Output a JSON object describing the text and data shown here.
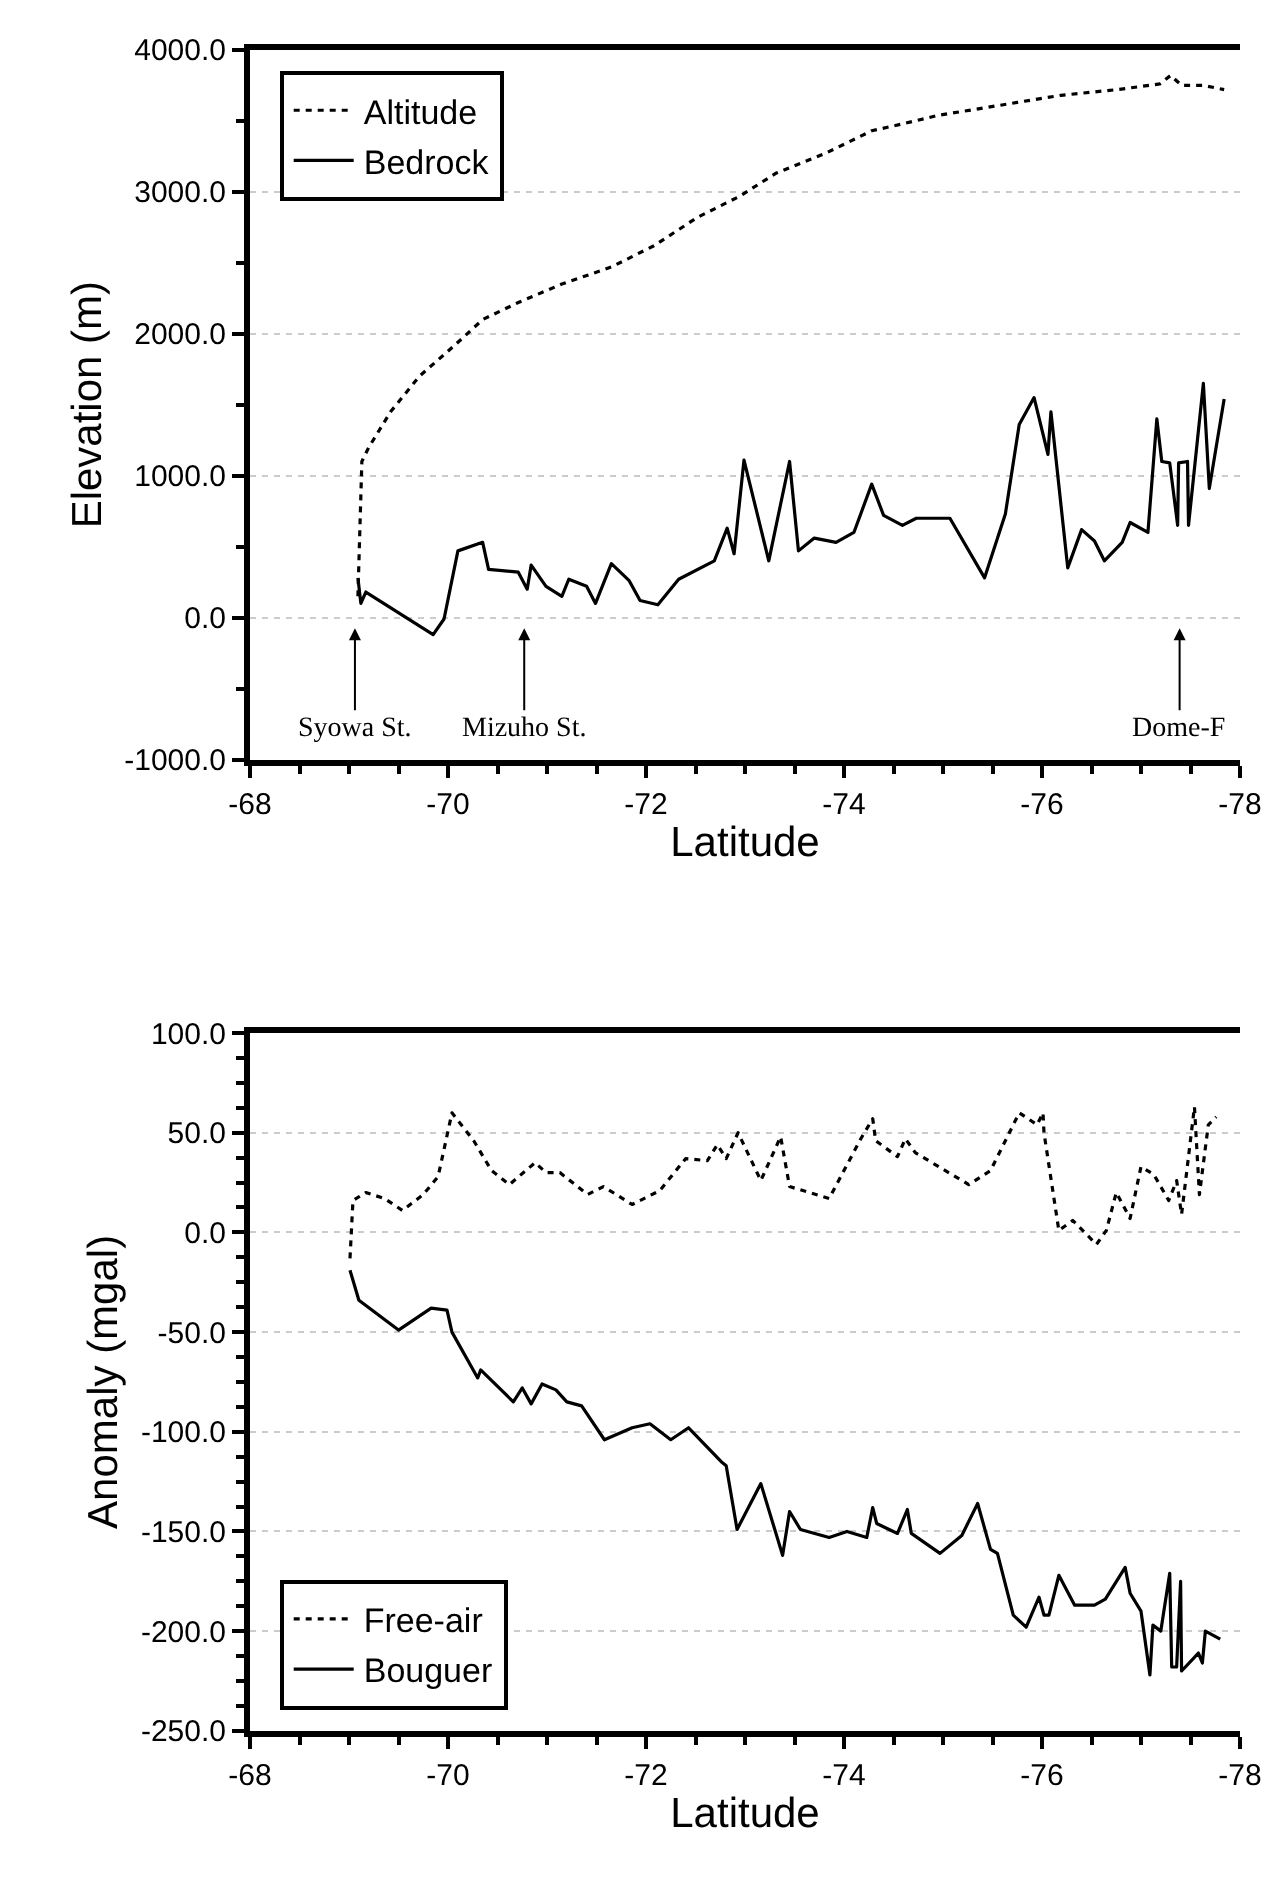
{
  "chart_data": [
    {
      "type": "line",
      "xlabel": "Latitude",
      "ylabel": "Elevation (m)",
      "xlim": [
        -68,
        -78
      ],
      "xticks": [
        -68,
        -70,
        -72,
        -74,
        -76,
        -78
      ],
      "ylim": [
        -1000,
        4000
      ],
      "yticks": [
        {
          "value": -1000,
          "label": "-1000.0"
        },
        {
          "value": 0,
          "label": "0.0"
        },
        {
          "value": 1000,
          "label": "1000.0"
        },
        {
          "value": 2000,
          "label": "2000.0"
        },
        {
          "value": 3000,
          "label": "3000.0"
        },
        {
          "value": 4000,
          "label": "4000.0"
        }
      ],
      "grid": "y",
      "legend": "top left",
      "annotations": [
        "Syowa St.",
        "Mizuho St.",
        "Dome-F"
      ],
      "series": [
        {
          "name": "Altitude",
          "color": "#000000",
          "line_style": "dotted",
          "x": [
            -69.09,
            -69.13,
            -69.2,
            -69.42,
            -69.71,
            -70.07,
            -70.35,
            -70.71,
            -71.15,
            -71.65,
            -72.08,
            -72.52,
            -72.95,
            -73.31,
            -73.81,
            -74.28,
            -74.6,
            -74.96,
            -75.32,
            -75.75,
            -76.19,
            -76.76,
            -77.19,
            -77.3,
            -77.41,
            -77.63,
            -77.84
          ],
          "values": [
            150,
            1100,
            1200,
            1450,
            1700,
            1920,
            2100,
            2220,
            2350,
            2470,
            2620,
            2820,
            2970,
            3130,
            3270,
            3430,
            3480,
            3540,
            3580,
            3630,
            3680,
            3720,
            3760,
            3820,
            3750,
            3750,
            3720
          ]
        },
        {
          "name": "Bedrock",
          "color": "#000000",
          "line_style": "solid",
          "x": [
            -69.09,
            -69.12,
            -69.17,
            -69.85,
            -69.96,
            -70.1,
            -70.35,
            -70.41,
            -70.71,
            -70.8,
            -70.84,
            -70.99,
            -71.15,
            -71.22,
            -71.4,
            -71.49,
            -71.65,
            -71.83,
            -71.94,
            -72.12,
            -72.33,
            -72.69,
            -72.82,
            -72.89,
            -72.99,
            -73.24,
            -73.45,
            -73.54,
            -73.7,
            -73.92,
            -74.1,
            -74.28,
            -74.4,
            -74.59,
            -74.73,
            -75.07,
            -75.42,
            -75.63,
            -75.77,
            -75.92,
            -76.06,
            -76.09,
            -76.26,
            -76.4,
            -76.53,
            -76.63,
            -76.81,
            -76.89,
            -77.07,
            -77.16,
            -77.21,
            -77.29,
            -77.37,
            -77.38,
            -77.47,
            -77.48,
            -77.63,
            -77.69,
            -77.84
          ],
          "values": [
            280,
            100,
            180,
            -120,
            -10,
            470,
            530,
            340,
            320,
            200,
            370,
            220,
            150,
            270,
            220,
            100,
            380,
            260,
            120,
            90,
            270,
            400,
            630,
            450,
            1110,
            400,
            1100,
            470,
            560,
            530,
            600,
            940,
            720,
            650,
            700,
            700,
            280,
            730,
            1360,
            1550,
            1150,
            1450,
            350,
            620,
            540,
            400,
            530,
            670,
            600,
            1400,
            1100,
            1090,
            650,
            1090,
            1100,
            650,
            1650,
            910,
            1540
          ]
        }
      ]
    },
    {
      "type": "line",
      "xlabel": "Latitude",
      "ylabel": "Anomaly (mgal)",
      "xlim": [
        -68,
        -78
      ],
      "xticks": [
        -68,
        -70,
        -72,
        -74,
        -76,
        -78
      ],
      "ylim": [
        -250,
        100
      ],
      "yticks": [
        {
          "value": -250,
          "label": "-250.0"
        },
        {
          "value": -200,
          "label": "-200.0"
        },
        {
          "value": -150,
          "label": "-150.0"
        },
        {
          "value": -100,
          "label": "-100.0"
        },
        {
          "value": -50,
          "label": "-50.0"
        },
        {
          "value": 0,
          "label": "0.0"
        },
        {
          "value": 50,
          "label": "50.0"
        },
        {
          "value": 100,
          "label": "100.0"
        }
      ],
      "grid": "y",
      "legend": "bottom left",
      "series": [
        {
          "name": "Free-air",
          "color": "#000000",
          "line_style": "dotted",
          "x": [
            -69.01,
            -69.04,
            -69.17,
            -69.36,
            -69.54,
            -69.75,
            -69.9,
            -70.04,
            -70.26,
            -70.44,
            -70.62,
            -70.88,
            -70.99,
            -71.13,
            -71.41,
            -71.57,
            -71.86,
            -72.14,
            -72.4,
            -72.62,
            -72.72,
            -72.81,
            -72.93,
            -73.16,
            -73.36,
            -73.45,
            -73.85,
            -74.17,
            -74.29,
            -74.32,
            -74.54,
            -74.62,
            -74.72,
            -75.26,
            -75.48,
            -75.77,
            -75.95,
            -76.01,
            -76.02,
            -76.17,
            -76.31,
            -76.55,
            -76.65,
            -76.75,
            -76.89,
            -77.0,
            -77.13,
            -77.28,
            -77.36,
            -77.41,
            -77.54,
            -77.59,
            -77.68,
            -77.76
          ],
          "values": [
            -13,
            16,
            20,
            17,
            11,
            19,
            28,
            60,
            46,
            31,
            24,
            35,
            30,
            30,
            19,
            23,
            14,
            21,
            37,
            36,
            44,
            37,
            50,
            26,
            48,
            23,
            17,
            47,
            57,
            46,
            38,
            47,
            40,
            24,
            31,
            60,
            54,
            60,
            50,
            1,
            6,
            -6,
            1,
            20,
            7,
            33,
            29,
            16,
            26,
            9,
            63,
            19,
            54,
            58
          ]
        },
        {
          "name": "Bouguer",
          "color": "#000000",
          "line_style": "solid",
          "x": [
            -69.01,
            -69.1,
            -69.5,
            -69.83,
            -69.99,
            -70.04,
            -70.3,
            -70.33,
            -70.66,
            -70.75,
            -70.84,
            -70.95,
            -71.09,
            -71.2,
            -71.35,
            -71.58,
            -71.86,
            -72.04,
            -72.25,
            -72.43,
            -72.76,
            -72.81,
            -72.92,
            -73.16,
            -73.38,
            -73.45,
            -73.56,
            -73.85,
            -74.03,
            -74.23,
            -74.29,
            -74.33,
            -74.54,
            -74.64,
            -74.68,
            -74.97,
            -75.19,
            -75.35,
            -75.48,
            -75.55,
            -75.71,
            -75.84,
            -75.97,
            -76.02,
            -76.07,
            -76.17,
            -76.33,
            -76.53,
            -76.64,
            -76.84,
            -76.89,
            -77.0,
            -77.09,
            -77.12,
            -77.2,
            -77.29,
            -77.31,
            -77.36,
            -77.4,
            -77.41,
            -77.58,
            -77.62,
            -77.65,
            -77.8
          ],
          "values": [
            -19,
            -34,
            -49,
            -38,
            -39,
            -50,
            -73,
            -69,
            -85,
            -78,
            -86,
            -76,
            -79,
            -85,
            -87,
            -104,
            -98,
            -96,
            -104,
            -98,
            -115,
            -117,
            -149,
            -126,
            -162,
            -140,
            -149,
            -153,
            -150,
            -153,
            -138,
            -146,
            -151,
            -139,
            -151,
            -161,
            -152,
            -136,
            -159,
            -161,
            -192,
            -198,
            -183,
            -192,
            -192,
            -172,
            -187,
            -187,
            -184,
            -168,
            -181,
            -190,
            -222,
            -197,
            -200,
            -171,
            -218,
            -218,
            -175,
            -220,
            -211,
            -216,
            -200,
            -204
          ]
        }
      ]
    }
  ]
}
